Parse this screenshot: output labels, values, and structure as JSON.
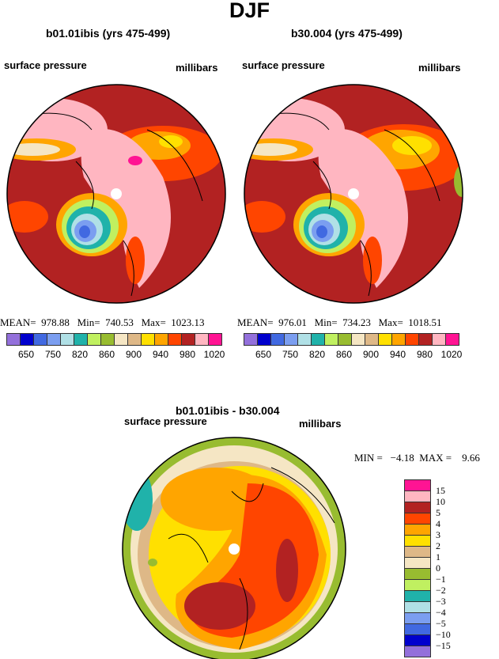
{
  "title": "DJF",
  "panels": [
    {
      "title": "b01.01ibis (yrs 475-499)",
      "left_label": "surface pressure",
      "right_label": "millibars",
      "stats": "MEAN=  978.88   Min=  740.53   Max=  1023.13"
    },
    {
      "title": "b30.004 (yrs 475-499)",
      "left_label": "surface pressure",
      "right_label": "millibars",
      "stats": "MEAN=  976.01   Min=  734.23   Max=  1018.51"
    }
  ],
  "colorbar": {
    "colors": [
      "#9370db",
      "#0000cd",
      "#4169e1",
      "#7b9ef0",
      "#b0e0e6",
      "#20b2aa",
      "#c0f060",
      "#98bc30",
      "#f5e6c4",
      "#deb887",
      "#ffe000",
      "#ffa500",
      "#ff4500",
      "#b22222",
      "#ffb6c1",
      "#ff1493"
    ],
    "labels": [
      "650",
      "750",
      "820",
      "860",
      "900",
      "940",
      "980",
      "1020"
    ]
  },
  "diff": {
    "title": "b01.01ibis - b30.004",
    "left_label": "surface pressure",
    "right_label": "millibars",
    "stats": "MIN =   −4.18  MAX =    9.66",
    "colors": [
      "#ff1493",
      "#ffb6c1",
      "#b22222",
      "#ff4500",
      "#ffa500",
      "#ffe000",
      "#deb887",
      "#f5e6c4",
      "#98bc30",
      "#c0f060",
      "#20b2aa",
      "#b0e0e6",
      "#7b9ef0",
      "#4169e1",
      "#0000cd",
      "#9370db"
    ],
    "labels": [
      "15",
      "10",
      "5",
      "4",
      "3",
      "2",
      "1",
      "0",
      "−1",
      "−2",
      "−3",
      "−4",
      "−5",
      "−10",
      "−15"
    ]
  }
}
